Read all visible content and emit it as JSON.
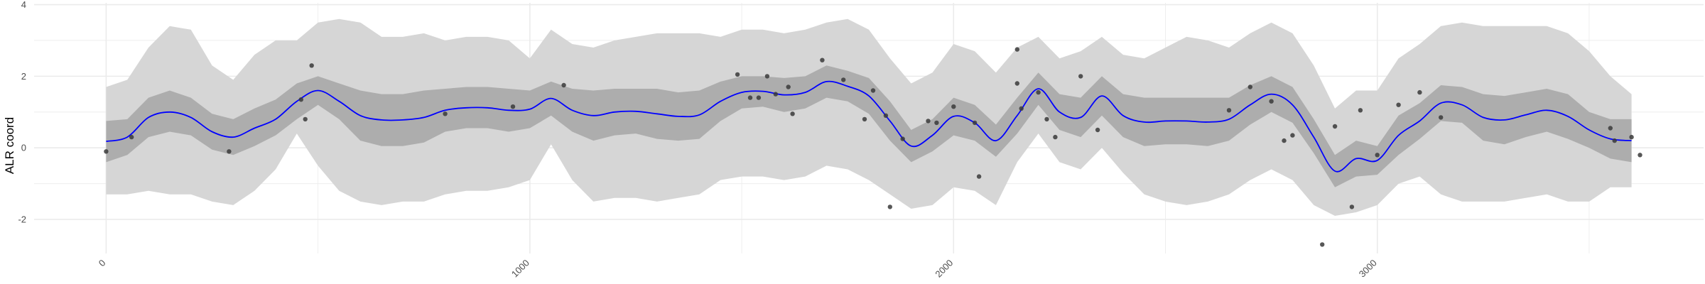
{
  "chart_data": {
    "type": "line",
    "title": "",
    "xlabel": "",
    "ylabel": "ALR coord",
    "xlim": [
      -170,
      3770
    ],
    "ylim": [
      -2.95,
      4.05
    ],
    "x_ticks": [
      0,
      1000,
      2000,
      3000
    ],
    "x_tick_labels": [
      "0",
      "1000",
      "2000",
      "3000"
    ],
    "y_ticks": [
      -2,
      0,
      2,
      4
    ],
    "y_tick_labels": [
      "-2",
      "0",
      "2",
      "4"
    ],
    "grid": true,
    "legend": "none",
    "colors": {
      "mean_line": "#0000ff",
      "inner_band": "#adadad",
      "outer_band": "#d6d6d6",
      "points": "#3a3a3a",
      "grid": "#ebebeb"
    },
    "series": [
      {
        "kind": "mean",
        "x": [
          0,
          50,
          100,
          150,
          200,
          250,
          300,
          350,
          400,
          450,
          500,
          550,
          600,
          650,
          700,
          750,
          800,
          850,
          900,
          950,
          1000,
          1050,
          1100,
          1150,
          1200,
          1250,
          1300,
          1350,
          1400,
          1450,
          1500,
          1550,
          1600,
          1650,
          1700,
          1750,
          1800,
          1850,
          1900,
          1950,
          2000,
          2050,
          2100,
          2150,
          2200,
          2250,
          2300,
          2350,
          2400,
          2450,
          2500,
          2550,
          2600,
          2650,
          2700,
          2750,
          2800,
          2850,
          2900,
          2950,
          3000,
          3050,
          3100,
          3150,
          3200,
          3250,
          3300,
          3350,
          3400,
          3450,
          3500,
          3550,
          3600
        ],
        "values": [
          0.18,
          0.3,
          0.85,
          1.0,
          0.85,
          0.45,
          0.3,
          0.55,
          0.8,
          1.3,
          1.6,
          1.3,
          0.9,
          0.78,
          0.78,
          0.85,
          1.05,
          1.12,
          1.12,
          1.05,
          1.08,
          1.38,
          1.05,
          0.9,
          1.0,
          1.02,
          0.95,
          0.88,
          0.92,
          1.3,
          1.55,
          1.58,
          1.48,
          1.55,
          1.85,
          1.72,
          1.45,
          0.75,
          0.05,
          0.35,
          0.88,
          0.7,
          0.2,
          0.9,
          1.65,
          1.0,
          0.85,
          1.45,
          0.9,
          0.72,
          0.75,
          0.75,
          0.72,
          0.8,
          1.2,
          1.5,
          1.2,
          0.3,
          -0.65,
          -0.3,
          -0.35,
          0.35,
          0.75,
          1.25,
          1.2,
          0.85,
          0.78,
          0.92,
          1.05,
          0.88,
          0.5,
          0.25,
          0.2
        ]
      },
      {
        "kind": "interval_inner",
        "x": [
          0,
          50,
          100,
          150,
          200,
          250,
          300,
          350,
          400,
          450,
          500,
          550,
          600,
          650,
          700,
          750,
          800,
          850,
          900,
          950,
          1000,
          1050,
          1100,
          1150,
          1200,
          1250,
          1300,
          1350,
          1400,
          1450,
          1500,
          1550,
          1600,
          1650,
          1700,
          1750,
          1800,
          1850,
          1900,
          1950,
          2000,
          2050,
          2100,
          2150,
          2200,
          2250,
          2300,
          2350,
          2400,
          2450,
          2500,
          2550,
          2600,
          2650,
          2700,
          2750,
          2800,
          2850,
          2900,
          2950,
          3000,
          3050,
          3100,
          3150,
          3200,
          3250,
          3300,
          3350,
          3400,
          3450,
          3500,
          3550,
          3600
        ],
        "lower": [
          -0.4,
          -0.2,
          0.3,
          0.45,
          0.35,
          -0.05,
          -0.2,
          0.05,
          0.35,
          0.8,
          1.2,
          0.8,
          0.2,
          0.05,
          0.05,
          0.15,
          0.45,
          0.55,
          0.55,
          0.45,
          0.55,
          0.9,
          0.45,
          0.2,
          0.35,
          0.4,
          0.25,
          0.2,
          0.25,
          0.75,
          1.1,
          1.15,
          1.0,
          1.1,
          1.4,
          1.3,
          0.95,
          0.2,
          -0.4,
          -0.1,
          0.35,
          0.2,
          -0.25,
          0.4,
          1.2,
          0.5,
          0.3,
          0.9,
          0.3,
          0.05,
          0.1,
          0.1,
          0.05,
          0.2,
          0.65,
          1.0,
          0.7,
          -0.15,
          -1.1,
          -0.8,
          -0.75,
          -0.2,
          0.25,
          0.75,
          0.7,
          0.2,
          0.1,
          0.3,
          0.45,
          0.25,
          0.0,
          -0.3,
          -0.4
        ],
        "upper": [
          0.75,
          0.8,
          1.4,
          1.6,
          1.4,
          0.95,
          0.8,
          1.1,
          1.35,
          1.8,
          2.0,
          1.8,
          1.6,
          1.5,
          1.5,
          1.6,
          1.65,
          1.7,
          1.7,
          1.65,
          1.6,
          1.85,
          1.65,
          1.6,
          1.65,
          1.65,
          1.65,
          1.55,
          1.6,
          1.85,
          2.0,
          2.0,
          1.95,
          2.0,
          2.3,
          2.15,
          1.95,
          1.3,
          0.5,
          0.8,
          1.4,
          1.2,
          0.65,
          1.4,
          2.1,
          1.5,
          1.4,
          2.0,
          1.5,
          1.4,
          1.4,
          1.4,
          1.4,
          1.4,
          1.75,
          2.0,
          1.7,
          0.8,
          -0.2,
          0.2,
          0.05,
          0.9,
          1.25,
          1.75,
          1.7,
          1.5,
          1.45,
          1.55,
          1.65,
          1.5,
          1.0,
          0.8,
          0.8
        ]
      },
      {
        "kind": "interval_outer",
        "x": [
          0,
          50,
          100,
          150,
          200,
          250,
          300,
          350,
          400,
          450,
          500,
          550,
          600,
          650,
          700,
          750,
          800,
          850,
          900,
          950,
          1000,
          1050,
          1100,
          1150,
          1200,
          1250,
          1300,
          1350,
          1400,
          1450,
          1500,
          1550,
          1600,
          1650,
          1700,
          1750,
          1800,
          1850,
          1900,
          1950,
          2000,
          2050,
          2100,
          2150,
          2200,
          2250,
          2300,
          2350,
          2400,
          2450,
          2500,
          2550,
          2600,
          2650,
          2700,
          2750,
          2800,
          2850,
          2900,
          2950,
          3000,
          3050,
          3100,
          3150,
          3200,
          3250,
          3300,
          3350,
          3400,
          3450,
          3500,
          3550,
          3600
        ],
        "lower": [
          -1.3,
          -1.3,
          -1.2,
          -1.3,
          -1.3,
          -1.5,
          -1.6,
          -1.2,
          -0.6,
          0.4,
          -0.5,
          -1.2,
          -1.5,
          -1.6,
          -1.5,
          -1.5,
          -1.3,
          -1.2,
          -1.2,
          -1.1,
          -0.9,
          0.1,
          -0.9,
          -1.5,
          -1.4,
          -1.4,
          -1.5,
          -1.4,
          -1.3,
          -0.9,
          -0.8,
          -0.8,
          -0.9,
          -0.8,
          -0.5,
          -0.6,
          -0.9,
          -1.3,
          -1.7,
          -1.6,
          -1.1,
          -1.2,
          -1.6,
          -0.4,
          0.4,
          -0.4,
          -0.6,
          0.0,
          -0.7,
          -1.3,
          -1.5,
          -1.6,
          -1.5,
          -1.3,
          -0.9,
          -0.6,
          -0.9,
          -1.6,
          -1.9,
          -1.8,
          -1.6,
          -1.0,
          -0.8,
          -1.3,
          -1.5,
          -1.5,
          -1.5,
          -1.4,
          -1.3,
          -1.5,
          -1.5,
          -1.1,
          -1.1
        ],
        "upper": [
          1.7,
          1.9,
          2.8,
          3.4,
          3.3,
          2.3,
          1.9,
          2.6,
          3.0,
          3.0,
          3.5,
          3.6,
          3.5,
          3.1,
          3.1,
          3.2,
          3.0,
          3.1,
          3.1,
          3.0,
          2.5,
          3.3,
          2.9,
          2.8,
          3.0,
          3.1,
          3.2,
          3.2,
          3.2,
          3.1,
          3.3,
          3.3,
          3.2,
          3.3,
          3.5,
          3.6,
          3.3,
          2.5,
          1.8,
          2.1,
          2.9,
          2.7,
          2.1,
          2.8,
          3.1,
          2.5,
          2.7,
          3.1,
          2.6,
          2.5,
          2.8,
          3.1,
          3.0,
          2.8,
          3.2,
          3.5,
          3.2,
          2.3,
          1.1,
          1.6,
          1.6,
          2.5,
          2.9,
          3.4,
          3.5,
          3.4,
          3.4,
          3.4,
          3.4,
          3.2,
          2.7,
          2.0,
          1.5
        ]
      },
      {
        "kind": "observations",
        "x": [
          0,
          60,
          290,
          460,
          470,
          485,
          800,
          960,
          1080,
          1490,
          1520,
          1540,
          1560,
          1580,
          1610,
          1620,
          1690,
          1740,
          1790,
          1810,
          1840,
          1850,
          1880,
          1940,
          1960,
          2000,
          2050,
          2060,
          2150,
          2150,
          2160,
          2200,
          2220,
          2240,
          2300,
          2340,
          2650,
          2700,
          2750,
          2780,
          2800,
          2870,
          2900,
          2940,
          2960,
          3000,
          3050,
          3100,
          3150,
          3550,
          3560,
          3600,
          3620
        ],
        "values": [
          -0.1,
          0.3,
          -0.1,
          1.35,
          0.8,
          2.3,
          0.95,
          1.15,
          1.75,
          2.05,
          1.4,
          1.4,
          2.0,
          1.5,
          1.7,
          0.95,
          2.45,
          1.9,
          0.8,
          1.6,
          0.9,
          -1.65,
          0.25,
          0.75,
          0.7,
          1.15,
          0.7,
          -0.8,
          1.8,
          2.75,
          1.1,
          1.55,
          0.8,
          0.3,
          2.0,
          0.5,
          1.05,
          1.7,
          1.3,
          0.2,
          0.35,
          -2.7,
          0.6,
          -1.65,
          1.05,
          -0.2,
          1.2,
          1.55,
          0.85,
          0.55,
          0.2,
          0.3,
          -0.2
        ]
      }
    ]
  }
}
